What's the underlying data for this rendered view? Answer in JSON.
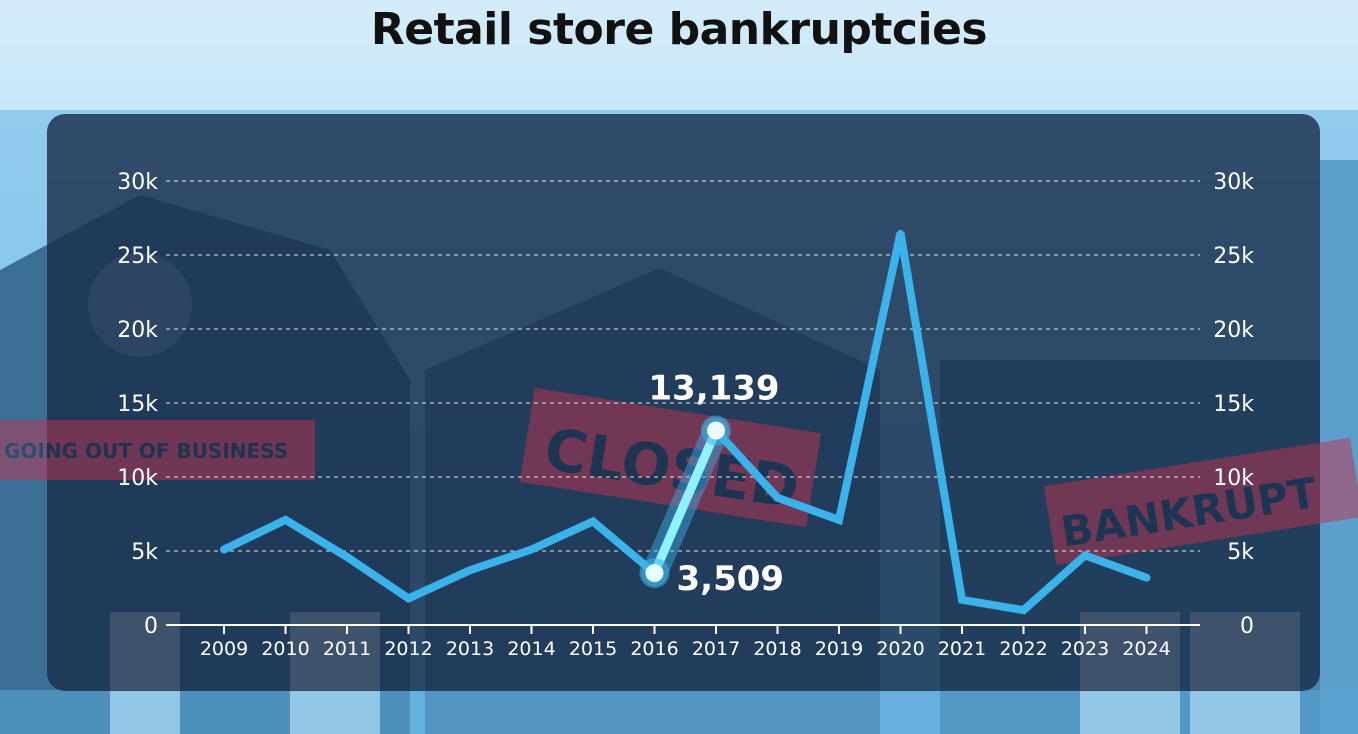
{
  "page": {
    "title": "Retail store bankruptcies"
  },
  "background_signs": {
    "going_out": "GOING OUT OF BUSINESS",
    "closed": "CLOSED",
    "bankrupt": "BANKRUPT"
  },
  "colors": {
    "line": "#3ab2ea",
    "highlight": "#8ff3ff",
    "panel": "#1a2e4c",
    "text": "#ffffff",
    "sign": "#c0344f"
  },
  "chart_data": {
    "type": "line",
    "title": "Retail store bankruptcies",
    "xlabel": "",
    "ylabel": "",
    "x": [
      "2009",
      "2010",
      "2011",
      "2012",
      "2013",
      "2014",
      "2015",
      "2016",
      "2017",
      "2018",
      "2019",
      "2020",
      "2021",
      "2022",
      "2023",
      "2024"
    ],
    "series": [
      {
        "values": [
          5100,
          7100,
          4600,
          1800,
          3700,
          5100,
          7000,
          3509,
          13139,
          8600,
          7100,
          26500,
          1700,
          1000,
          4700,
          3200
        ]
      }
    ],
    "ylim": [
      0,
      30000
    ],
    "yticks": [
      {
        "value": 0,
        "label": "0"
      },
      {
        "value": 5000,
        "label": "5k"
      },
      {
        "value": 10000,
        "label": "10k"
      },
      {
        "value": 15000,
        "label": "15k"
      },
      {
        "value": 20000,
        "label": "20k"
      },
      {
        "value": 25000,
        "label": "25k"
      },
      {
        "value": 30000,
        "label": "30k"
      }
    ],
    "grid": true,
    "dual_y_axis": true,
    "highlight_segment": {
      "from": "2016",
      "to": "2017"
    },
    "annotations": [
      {
        "x": "2017",
        "value": 13139,
        "label": "13,139"
      },
      {
        "x": "2016",
        "value": 3509,
        "label": "3,509"
      }
    ]
  }
}
